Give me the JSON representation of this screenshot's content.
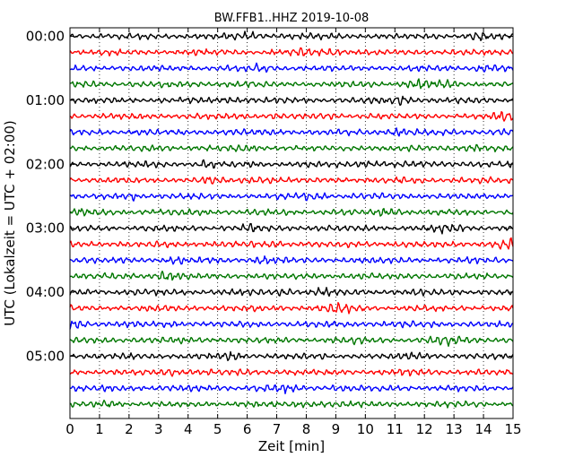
{
  "chart_data": {
    "type": "line",
    "title": "BW.FFB1..HHZ 2019-10-08",
    "xlabel": "Zeit  [min]",
    "ylabel": "UTC (Lokalzeit = UTC + 02:00)",
    "xlim": [
      0,
      15
    ],
    "x_ticks": [
      "0",
      "1",
      "2",
      "3",
      "4",
      "5",
      "6",
      "7",
      "8",
      "9",
      "10",
      "11",
      "12",
      "13",
      "14",
      "15"
    ],
    "y_tick_labels": [
      "00:00",
      "01:00",
      "02:00",
      "03:00",
      "04:00",
      "05:00"
    ],
    "traces_per_hour": 4,
    "trace_count": 24,
    "trace_colors": [
      "#000000",
      "#ff0000",
      "#0000ff",
      "#007700"
    ],
    "grid": {
      "x": "dotted",
      "y": "none"
    }
  }
}
